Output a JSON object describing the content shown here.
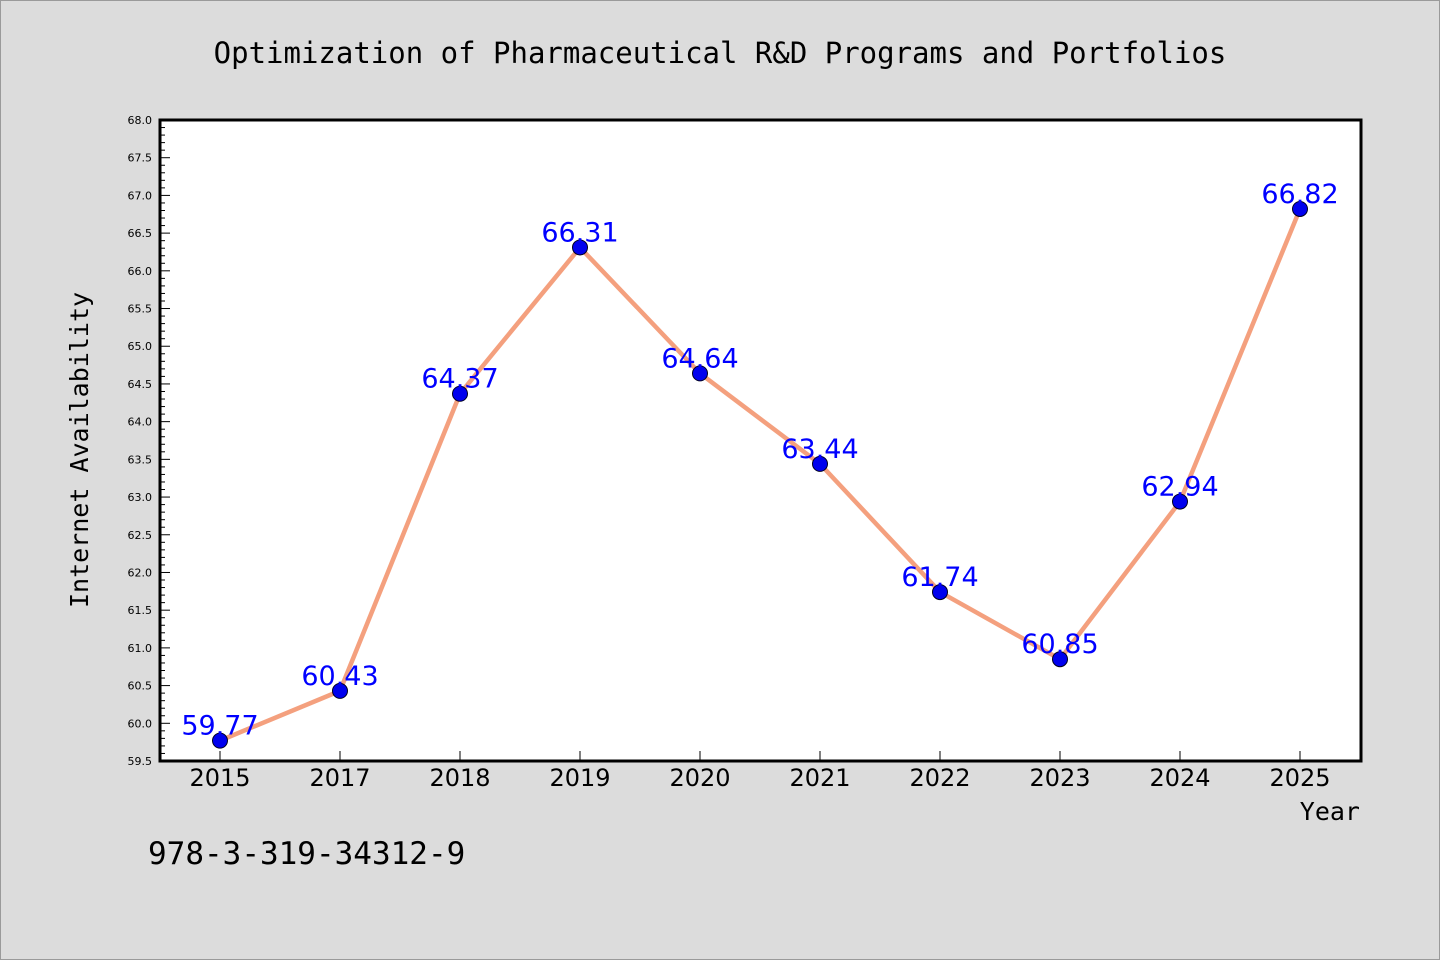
{
  "chart_data": {
    "type": "line",
    "title": "Optimization of Pharmaceutical R&D Programs and Portfolios",
    "xlabel": "Year",
    "ylabel": "Internet Availability",
    "categories": [
      "2015",
      "2017",
      "2018",
      "2019",
      "2020",
      "2021",
      "2022",
      "2023",
      "2024",
      "2025"
    ],
    "series": [
      {
        "values": [
          59.77,
          60.43,
          64.37,
          66.31,
          64.64,
          63.44,
          61.74,
          60.85,
          62.94,
          66.82
        ]
      }
    ],
    "data_labels": [
      "59.77",
      "60.43",
      "64.37",
      "66.31",
      "64.64",
      "63.44",
      "61.74",
      "60.85",
      "62.94",
      "66.82"
    ],
    "ylim": [
      59.5,
      68.0
    ],
    "yticks": [
      "59.5",
      "60.0",
      "60.5",
      "61.0",
      "61.5",
      "62.0",
      "62.5",
      "63.0",
      "63.5",
      "64.0",
      "64.5",
      "65.0",
      "65.5",
      "66.0",
      "66.5",
      "67.0",
      "67.5",
      "68.0"
    ],
    "grid": false,
    "colors": {
      "line": "#f4a07e",
      "marker": "#0000ee",
      "label": "#0000ff",
      "background": "#dcdcdc",
      "plot_background": "#ffffff"
    }
  },
  "annotation": {
    "isbn": "978-3-319-34312-9"
  }
}
